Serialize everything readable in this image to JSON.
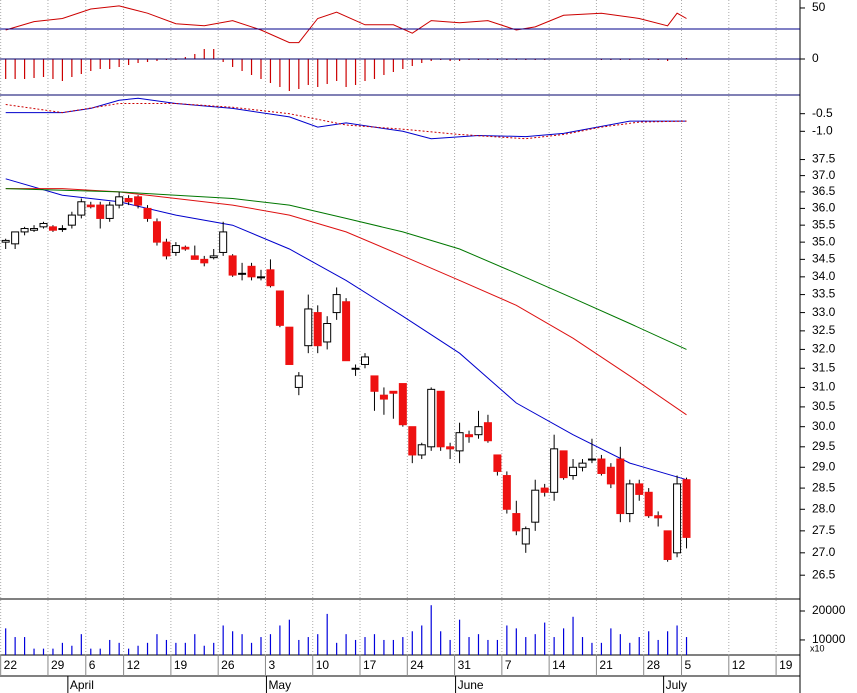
{
  "chart_data": [
    {
      "type": "line",
      "ylim": [
        1.4,
        57.6
      ],
      "yticks": [
        50
      ],
      "reference_line": 30,
      "reference_color": "#00008b",
      "color": "#cc0000",
      "x": [
        0,
        3,
        6,
        9,
        12,
        15,
        18,
        21,
        24,
        27,
        30,
        31,
        33,
        35,
        38,
        41,
        43,
        45,
        48,
        51,
        54,
        56,
        59,
        63,
        67,
        70,
        71,
        72
      ],
      "values": [
        29,
        37,
        40,
        49,
        52,
        45,
        35,
        33,
        38,
        29,
        17,
        17,
        40,
        46,
        34,
        34,
        26,
        38,
        36,
        38,
        29,
        32,
        43,
        45,
        40,
        33,
        45,
        40
      ]
    },
    {
      "type": "bar",
      "ylim": [
        -0.36,
        0.29
      ],
      "yticks": [
        0
      ],
      "color": "#cc0000",
      "values": [
        -0.2,
        -0.2,
        -0.2,
        -0.19,
        -0.18,
        -0.2,
        -0.22,
        -0.18,
        -0.15,
        -0.12,
        -0.1,
        -0.1,
        -0.08,
        -0.06,
        -0.04,
        -0.03,
        -0.02,
        -0.01,
        -0.01,
        0.02,
        0.05,
        0.1,
        0.1,
        -0.03,
        -0.08,
        -0.12,
        -0.16,
        -0.2,
        -0.24,
        -0.28,
        -0.32,
        -0.3,
        -0.26,
        -0.28,
        -0.25,
        -0.22,
        -0.28,
        -0.26,
        -0.22,
        -0.2,
        -0.16,
        -0.13,
        -0.1,
        -0.07,
        -0.04,
        -0.02,
        -0.01,
        -0.02,
        -0.02,
        -0.01,
        -0.01,
        -0.01,
        -0.01,
        -0.01,
        -0.01,
        -0.01,
        -0.01,
        -0.01,
        0,
        0,
        0,
        0,
        0,
        -0.01,
        -0.01,
        -0.01,
        -0.01,
        0,
        -0.01,
        -0.01,
        -0.02,
        0,
        0.01
      ]
    },
    {
      "type": "line",
      "ylim": [
        -1.53,
        0.03
      ],
      "yticks": [
        -0.5,
        {
          "value": -1,
          "label": "-1.0"
        }
      ],
      "series": [
        {
          "color": "#0000cc",
          "x": [
            0,
            6,
            9,
            12,
            14,
            18,
            24,
            30,
            33,
            36,
            42,
            45,
            50,
            55,
            59,
            62,
            66,
            72
          ],
          "values": [
            -0.47,
            -0.47,
            -0.35,
            -0.12,
            -0.06,
            -0.21,
            -0.35,
            -0.59,
            -0.88,
            -0.76,
            -1.0,
            -1.21,
            -1.12,
            -1.15,
            -1.06,
            -0.91,
            -0.71,
            -0.71
          ]
        },
        {
          "color": "#cc0000",
          "dashed": true,
          "x": [
            0,
            6,
            12,
            18,
            24,
            30,
            36,
            42,
            48,
            55,
            59,
            63,
            67,
            72
          ],
          "values": [
            -0.24,
            -0.47,
            -0.21,
            -0.21,
            -0.32,
            -0.5,
            -0.82,
            -0.94,
            -1.09,
            -1.21,
            -1.09,
            -0.88,
            -0.74,
            -0.71
          ]
        }
      ]
    },
    {
      "type": "candlestick",
      "log": true,
      "ylim": [
        26,
        37.8
      ],
      "xlim": [
        -0.6,
        84
      ],
      "up_color": "#ffffff",
      "down_color": "#ee1111",
      "yticks": [
        37.5,
        {
          "value": 37,
          "label": "37.0"
        },
        36.5,
        {
          "value": 36,
          "label": "36.0"
        },
        35.5,
        {
          "value": 35,
          "label": "35.0"
        },
        34.5,
        {
          "value": 34,
          "label": "34.0"
        },
        33.5,
        {
          "value": 33,
          "label": "33.0"
        },
        32.5,
        {
          "value": 32,
          "label": "32.0"
        },
        31.5,
        {
          "value": 31,
          "label": "31.0"
        },
        30.5,
        {
          "value": 30,
          "label": "30.0"
        },
        29.5,
        {
          "value": 29,
          "label": "29.0"
        },
        28.5,
        {
          "value": 28,
          "label": "28.0"
        },
        27.5,
        {
          "value": 27,
          "label": "27.0"
        },
        26.5
      ],
      "open": [
        35.0,
        34.95,
        35.3,
        35.35,
        35.45,
        35.45,
        35.4,
        35.5,
        35.8,
        36.1,
        36.1,
        35.7,
        36.1,
        36.3,
        36.35,
        36.0,
        35.6,
        35.0,
        34.7,
        34.85,
        34.6,
        34.5,
        34.55,
        34.7,
        34.6,
        34.1,
        34.3,
        34.0,
        34.2,
        33.6,
        32.6,
        31.0,
        32.1,
        33.0,
        32.2,
        33.0,
        33.3,
        31.5,
        31.6,
        31.3,
        30.8,
        30.9,
        31.1,
        30.0,
        29.3,
        29.5,
        30.9,
        29.5,
        29.4,
        29.8,
        29.8,
        30.1,
        29.3,
        28.8,
        27.9,
        27.2,
        27.7,
        28.5,
        28.4,
        29.4,
        28.8,
        29.0,
        29.2,
        29.2,
        29.0,
        29.2,
        27.9,
        28.6,
        28.4,
        27.85,
        27.5,
        27.0,
        28.7
      ],
      "high": [
        35.1,
        35.3,
        35.45,
        35.5,
        35.6,
        35.5,
        35.5,
        35.9,
        36.3,
        36.2,
        36.2,
        36.2,
        36.5,
        36.4,
        36.4,
        36.1,
        35.7,
        35.1,
        35.0,
        34.9,
        34.9,
        34.6,
        34.8,
        35.6,
        34.65,
        34.4,
        34.4,
        34.2,
        34.5,
        33.6,
        32.6,
        31.4,
        33.5,
        33.2,
        32.9,
        33.7,
        33.4,
        31.6,
        31.9,
        31.3,
        31.0,
        30.9,
        31.1,
        30.0,
        29.6,
        31.0,
        30.9,
        29.6,
        30.1,
        29.9,
        30.4,
        30.3,
        29.3,
        28.9,
        28.2,
        27.6,
        28.7,
        28.6,
        29.8,
        29.4,
        29.2,
        29.2,
        29.7,
        29.3,
        29.1,
        29.5,
        28.7,
        28.7,
        28.5,
        27.95,
        27.5,
        28.8,
        28.75
      ],
      "low": [
        34.8,
        34.8,
        35.2,
        35.3,
        35.4,
        35.3,
        35.3,
        35.4,
        35.7,
        36.0,
        35.4,
        35.6,
        36.0,
        36.1,
        36.0,
        35.6,
        34.9,
        34.5,
        34.6,
        34.75,
        34.5,
        34.3,
        34.5,
        34.6,
        34.0,
        33.9,
        33.9,
        33.9,
        33.7,
        32.6,
        31.6,
        30.8,
        31.9,
        31.9,
        32.0,
        32.8,
        31.7,
        31.3,
        31.5,
        30.4,
        30.3,
        30.2,
        30.0,
        29.1,
        29.2,
        29.4,
        29.4,
        29.2,
        29.1,
        29.6,
        29.7,
        29.6,
        28.8,
        27.9,
        27.4,
        27.0,
        27.5,
        28.3,
        28.2,
        28.7,
        28.7,
        28.9,
        29.1,
        28.8,
        28.5,
        27.7,
        27.7,
        28.2,
        27.8,
        27.6,
        26.8,
        26.9,
        27.1
      ],
      "close": [
        35.05,
        35.3,
        35.4,
        35.4,
        35.55,
        35.35,
        35.4,
        35.8,
        36.2,
        36.05,
        35.7,
        36.1,
        36.35,
        36.2,
        36.1,
        35.7,
        35.0,
        34.6,
        34.9,
        34.8,
        34.5,
        34.4,
        34.6,
        35.3,
        34.05,
        34.1,
        34.0,
        34.0,
        33.75,
        32.65,
        31.6,
        31.3,
        33.1,
        32.1,
        32.7,
        33.5,
        31.7,
        31.5,
        31.8,
        30.9,
        30.7,
        30.85,
        30.05,
        29.3,
        29.55,
        30.95,
        29.5,
        29.45,
        29.85,
        29.75,
        30.0,
        29.65,
        28.9,
        28.0,
        27.5,
        27.55,
        28.45,
        28.4,
        29.45,
        28.75,
        29.0,
        29.1,
        29.2,
        28.85,
        28.6,
        27.9,
        28.6,
        28.35,
        27.85,
        27.8,
        26.85,
        28.6,
        27.35
      ],
      "series": [
        {
          "color": "#0000cc",
          "x": [
            0,
            6,
            12,
            18,
            24,
            30,
            36,
            42,
            48,
            54,
            60,
            66,
            72
          ],
          "values": [
            36.9,
            36.4,
            36.2,
            35.8,
            35.5,
            34.8,
            33.9,
            32.9,
            31.9,
            30.6,
            29.8,
            29.1,
            28.7
          ]
        },
        {
          "color": "#dd1111",
          "x": [
            0,
            6,
            12,
            18,
            24,
            30,
            36,
            42,
            48,
            54,
            60,
            66,
            72
          ],
          "values": [
            36.6,
            36.6,
            36.5,
            36.3,
            36.1,
            35.8,
            35.3,
            34.6,
            33.9,
            33.2,
            32.3,
            31.3,
            30.3
          ]
        },
        {
          "color": "#007700",
          "x": [
            0,
            6,
            12,
            18,
            24,
            30,
            36,
            42,
            48,
            54,
            60,
            66,
            72
          ],
          "values": [
            36.6,
            36.55,
            36.5,
            36.4,
            36.3,
            36.1,
            35.7,
            35.3,
            34.8,
            34.1,
            33.4,
            32.7,
            32.0
          ]
        }
      ],
      "xticks": [
        {
          "value": 0,
          "label": "22"
        },
        {
          "value": 5,
          "label": "29"
        },
        {
          "value": 9,
          "label": "6"
        },
        {
          "value": 13,
          "label": "12"
        },
        {
          "value": 18,
          "label": "19"
        },
        {
          "value": 23,
          "label": "26"
        },
        {
          "value": 28,
          "label": "3"
        },
        {
          "value": 33,
          "label": "10"
        },
        {
          "value": 38,
          "label": "17"
        },
        {
          "value": 43,
          "label": "24"
        },
        {
          "value": 48,
          "label": "31"
        },
        {
          "value": 53,
          "label": "7"
        },
        {
          "value": 58,
          "label": "14"
        },
        {
          "value": 63,
          "label": "21"
        },
        {
          "value": 68,
          "label": "28"
        },
        {
          "value": 72,
          "label": "5"
        },
        {
          "value": 77,
          "label": "12"
        },
        {
          "value": 82,
          "label": "19"
        }
      ],
      "months": [
        {
          "value": 7,
          "label": "April"
        },
        {
          "value": 28,
          "label": "May"
        },
        {
          "value": 48,
          "label": "June"
        },
        {
          "value": 70,
          "label": "July"
        }
      ]
    },
    {
      "type": "bar",
      "ylim": [
        4800,
        23800
      ],
      "yticks": [
        20000,
        10000
      ],
      "color": "#0000dd",
      "unit_note": "x10",
      "values": [
        14000,
        11000,
        11000,
        7000,
        7000,
        7000,
        9000,
        8000,
        12000,
        7000,
        7000,
        10000,
        9000,
        7000,
        8000,
        9000,
        12000,
        10000,
        9000,
        9000,
        12000,
        8000,
        9000,
        15000,
        13000,
        12000,
        9000,
        11000,
        12000,
        15000,
        17000,
        10000,
        11000,
        12000,
        19000,
        9000,
        12000,
        10000,
        11000,
        12000,
        10000,
        10000,
        11000,
        13000,
        15000,
        22000,
        13000,
        10000,
        17000,
        11000,
        12000,
        10000,
        10000,
        15000,
        14000,
        11000,
        12000,
        16000,
        11000,
        14000,
        18000,
        11000,
        9000,
        9000,
        14000,
        12000,
        9000,
        11000,
        13000,
        10000,
        13000,
        15000,
        11000
      ]
    }
  ]
}
